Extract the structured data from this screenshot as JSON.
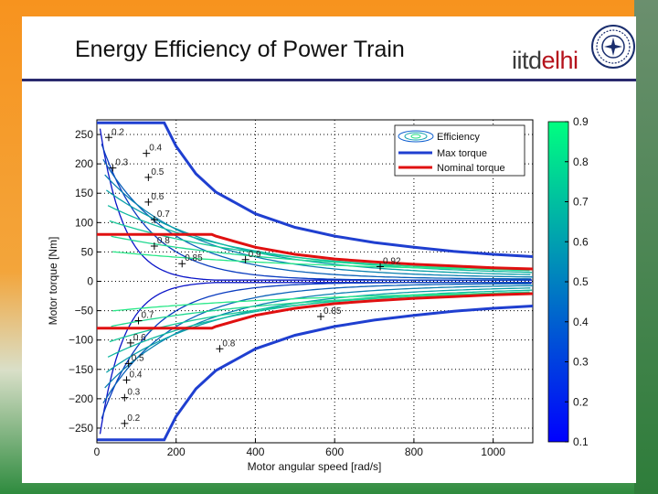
{
  "slide": {
    "title": "Energy Efficiency of Power Train",
    "logo": {
      "prefix": "iitd",
      "accent": "elhi"
    }
  },
  "colors": {
    "background_band": "#f7931e",
    "header_rule": "#2a2a6e",
    "max_torque": "#1f3fd0",
    "nominal_torque": "#e01010"
  },
  "chart_data": {
    "type": "contour",
    "xlabel": "Motor angular speed [rad/s]",
    "ylabel": "Motor torque [Nm]",
    "xlim": [
      0,
      1100
    ],
    "ylim": [
      -275,
      275
    ],
    "xticks": [
      "0",
      "200",
      "400",
      "600",
      "800",
      "1000"
    ],
    "yticks": [
      "250",
      "200",
      "150",
      "100",
      "50",
      "0",
      "−50",
      "−100",
      "−150",
      "−200",
      "−250"
    ],
    "legend": {
      "position": "top-right",
      "entries": [
        "Efficiency",
        "Max torque",
        "Nominal torque"
      ]
    },
    "colorbar": {
      "range": [
        0.1,
        0.9
      ],
      "ticks": [
        "0.9",
        "0.8",
        "0.7",
        "0.6",
        "0.5",
        "0.4",
        "0.3",
        "0.2",
        "0.1"
      ]
    },
    "max_torque": {
      "x": [
        0,
        170,
        200,
        250,
        300,
        400,
        500,
        600,
        700,
        800,
        900,
        1000,
        1100
      ],
      "y": [
        270,
        270,
        230,
        183,
        152,
        115,
        92,
        77,
        66,
        58,
        51,
        46,
        42
      ]
    },
    "nominal_torque": {
      "x": [
        0,
        290,
        300,
        400,
        500,
        600,
        700,
        800,
        900,
        1000,
        1100
      ],
      "y": [
        80,
        80,
        77,
        58,
        46,
        38,
        33,
        29,
        26,
        23,
        21
      ]
    },
    "contour_labels": [
      {
        "text": "0.2",
        "x": 30,
        "y": 245
      },
      {
        "text": "0.4",
        "x": 125,
        "y": 218
      },
      {
        "text": "0.3",
        "x": 40,
        "y": 193
      },
      {
        "text": "0.5",
        "x": 130,
        "y": 177
      },
      {
        "text": "0.6",
        "x": 130,
        "y": 135
      },
      {
        "text": "0.7",
        "x": 145,
        "y": 105
      },
      {
        "text": "0.8",
        "x": 145,
        "y": 60
      },
      {
        "text": "0.85",
        "x": 215,
        "y": 30
      },
      {
        "text": "0.9",
        "x": 375,
        "y": 37
      },
      {
        "text": "0.92",
        "x": 715,
        "y": 25
      },
      {
        "text": "0.7",
        "x": 105,
        "y": -67
      },
      {
        "text": "0.85",
        "x": 565,
        "y": -60
      },
      {
        "text": "0.6",
        "x": 85,
        "y": -105
      },
      {
        "text": "0.8",
        "x": 310,
        "y": -115
      },
      {
        "text": "0.5",
        "x": 80,
        "y": -140
      },
      {
        "text": "0.4",
        "x": 75,
        "y": -168
      },
      {
        "text": "0.3",
        "x": 70,
        "y": -198
      },
      {
        "text": "0.2",
        "x": 70,
        "y": -242
      }
    ]
  }
}
